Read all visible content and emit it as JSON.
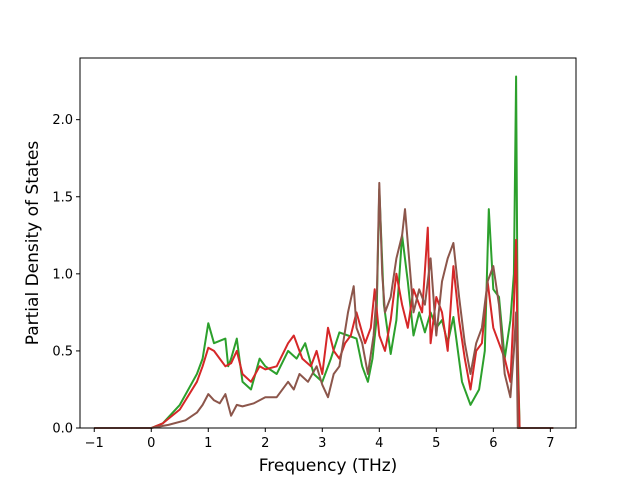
{
  "chart_data": {
    "type": "line",
    "xlabel": "Frequency (THz)",
    "ylabel": "Partial Density of States",
    "xlim": [
      -1.25,
      7.45
    ],
    "ylim": [
      0.0,
      2.4
    ],
    "x_ticks": [
      -1,
      0,
      1,
      2,
      3,
      4,
      5,
      6,
      7
    ],
    "y_ticks": [
      0.0,
      0.5,
      1.0,
      1.5,
      2.0
    ],
    "x_tick_labels": [
      "−1",
      "0",
      "1",
      "2",
      "3",
      "4",
      "5",
      "6",
      "7"
    ],
    "y_tick_labels": [
      "0.0",
      "0.5",
      "1.0",
      "1.5",
      "2.0"
    ],
    "grid": false,
    "legend": "none",
    "series": [
      {
        "color": "#2ca02c",
        "x": [
          -1.0,
          0.0,
          0.2,
          0.5,
          0.8,
          0.9,
          1.0,
          1.1,
          1.3,
          1.35,
          1.4,
          1.5,
          1.6,
          1.75,
          1.9,
          2.0,
          2.2,
          2.4,
          2.55,
          2.7,
          2.85,
          3.0,
          3.15,
          3.3,
          3.45,
          3.6,
          3.7,
          3.8,
          3.88,
          3.95,
          4.0,
          4.08,
          4.2,
          4.3,
          4.4,
          4.5,
          4.6,
          4.7,
          4.8,
          4.9,
          5.0,
          5.1,
          5.2,
          5.3,
          5.45,
          5.6,
          5.75,
          5.85,
          5.92,
          6.0,
          6.1,
          6.2,
          6.3,
          6.36,
          6.4,
          6.43,
          6.46,
          7.05
        ],
        "y": [
          0.0,
          0.0,
          0.03,
          0.15,
          0.35,
          0.45,
          0.68,
          0.55,
          0.58,
          0.4,
          0.45,
          0.58,
          0.3,
          0.25,
          0.45,
          0.4,
          0.35,
          0.5,
          0.45,
          0.55,
          0.35,
          0.3,
          0.45,
          0.62,
          0.6,
          0.58,
          0.4,
          0.3,
          0.45,
          0.7,
          1.55,
          0.8,
          0.48,
          0.7,
          1.25,
          0.95,
          0.6,
          0.75,
          0.62,
          0.75,
          0.65,
          0.7,
          0.55,
          0.72,
          0.3,
          0.15,
          0.25,
          0.5,
          1.42,
          0.9,
          0.85,
          0.45,
          0.7,
          1.0,
          2.28,
          0.5,
          0.0,
          0.0
        ]
      },
      {
        "color": "#d62728",
        "x": [
          -1.0,
          0.0,
          0.2,
          0.5,
          0.8,
          0.9,
          1.0,
          1.1,
          1.2,
          1.3,
          1.4,
          1.5,
          1.6,
          1.75,
          1.9,
          2.0,
          2.2,
          2.4,
          2.5,
          2.65,
          2.8,
          2.9,
          3.0,
          3.1,
          3.2,
          3.3,
          3.4,
          3.5,
          3.6,
          3.75,
          3.85,
          3.92,
          4.0,
          4.1,
          4.2,
          4.3,
          4.4,
          4.5,
          4.6,
          4.75,
          4.85,
          4.9,
          5.0,
          5.1,
          5.2,
          5.3,
          5.4,
          5.5,
          5.6,
          5.7,
          5.8,
          5.9,
          6.0,
          6.1,
          6.2,
          6.3,
          6.36,
          6.4,
          6.43,
          6.46,
          7.05
        ],
        "y": [
          0.0,
          0.0,
          0.03,
          0.12,
          0.3,
          0.4,
          0.52,
          0.5,
          0.45,
          0.4,
          0.42,
          0.5,
          0.35,
          0.3,
          0.4,
          0.38,
          0.4,
          0.55,
          0.6,
          0.45,
          0.4,
          0.5,
          0.35,
          0.65,
          0.5,
          0.45,
          0.55,
          0.6,
          0.75,
          0.55,
          0.65,
          0.9,
          0.6,
          0.5,
          0.7,
          1.0,
          0.8,
          0.65,
          0.9,
          0.75,
          1.3,
          0.55,
          0.85,
          0.75,
          0.5,
          1.05,
          0.7,
          0.45,
          0.25,
          0.5,
          0.55,
          0.95,
          0.65,
          0.55,
          0.45,
          0.3,
          0.8,
          1.22,
          0.4,
          0.0,
          0.0
        ]
      },
      {
        "color": "#8c564b",
        "x": [
          -1.0,
          0.0,
          0.3,
          0.6,
          0.8,
          0.9,
          1.0,
          1.1,
          1.2,
          1.3,
          1.4,
          1.5,
          1.6,
          1.8,
          2.0,
          2.2,
          2.4,
          2.5,
          2.6,
          2.75,
          2.9,
          3.0,
          3.1,
          3.2,
          3.3,
          3.45,
          3.55,
          3.6,
          3.7,
          3.8,
          3.9,
          3.96,
          4.0,
          4.05,
          4.1,
          4.2,
          4.3,
          4.4,
          4.45,
          4.5,
          4.6,
          4.7,
          4.8,
          4.9,
          5.0,
          5.1,
          5.2,
          5.3,
          5.4,
          5.5,
          5.6,
          5.7,
          5.8,
          5.9,
          6.0,
          6.1,
          6.2,
          6.3,
          6.36,
          6.4,
          6.43,
          7.05
        ],
        "y": [
          0.0,
          0.0,
          0.02,
          0.05,
          0.1,
          0.15,
          0.22,
          0.18,
          0.16,
          0.22,
          0.08,
          0.15,
          0.14,
          0.16,
          0.2,
          0.2,
          0.3,
          0.25,
          0.35,
          0.3,
          0.4,
          0.28,
          0.2,
          0.35,
          0.4,
          0.75,
          0.92,
          0.65,
          0.55,
          0.35,
          0.6,
          0.9,
          1.59,
          1.0,
          0.75,
          0.85,
          1.1,
          1.25,
          1.42,
          1.2,
          0.75,
          0.9,
          0.8,
          1.1,
          0.6,
          0.95,
          1.1,
          1.2,
          0.85,
          0.55,
          0.35,
          0.55,
          0.65,
          0.95,
          1.05,
          0.8,
          0.35,
          0.2,
          0.5,
          0.75,
          0.0,
          0.0
        ]
      }
    ]
  }
}
